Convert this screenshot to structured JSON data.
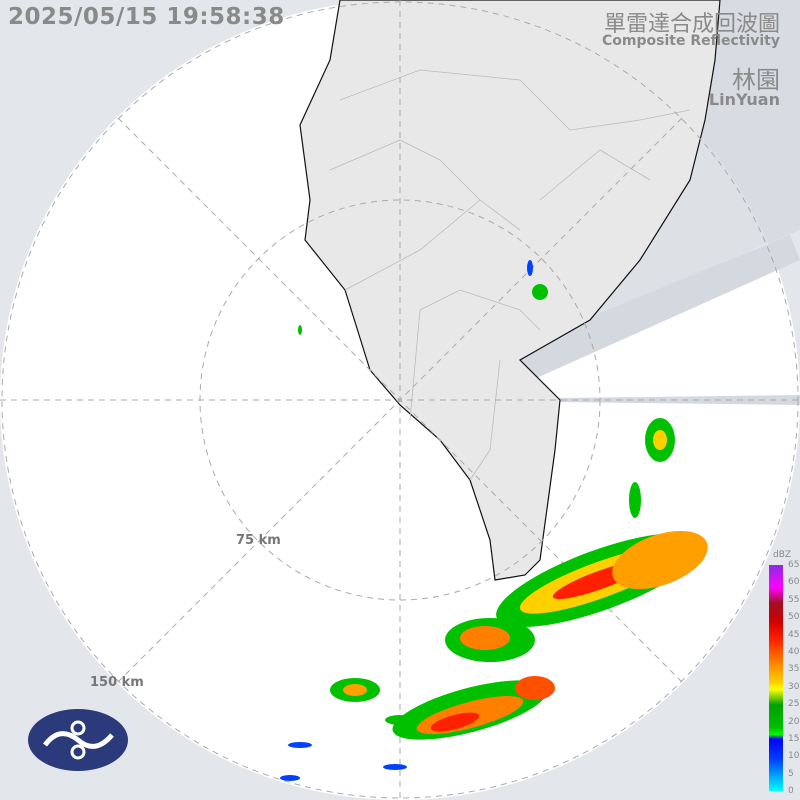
{
  "timestamp": "2025/05/15 19:58:38",
  "title_zh": "單雷達合成回波圖",
  "title_en": "Composite Reflectivity",
  "station_zh": "林園",
  "station_en": "LinYuan",
  "range_labels": [
    "75 km",
    "150 km"
  ],
  "legend": {
    "unit": "dBZ",
    "ticks": [
      "65",
      "60",
      "55",
      "50",
      "45",
      "40",
      "35",
      "30",
      "25",
      "20",
      "15",
      "10",
      "5",
      "0"
    ]
  },
  "colors": {
    "background": "#e3e7ec",
    "coverage": "#ffffff",
    "land": "#e8e8e8",
    "blocked": "#cfd5dd",
    "logo": "#2a3a7a"
  },
  "logo_icon": "cwa-logo"
}
